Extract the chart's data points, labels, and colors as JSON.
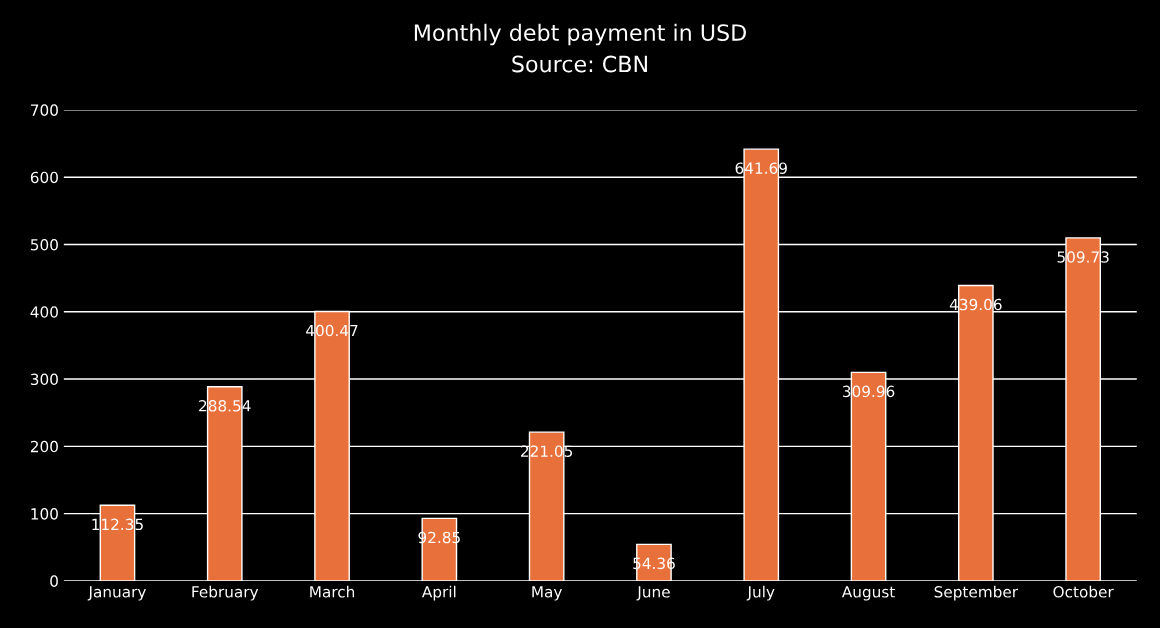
{
  "chart_data": {
    "type": "bar",
    "title": "Monthly debt payment in USD",
    "subtitle": "Source: CBN",
    "categories": [
      "January",
      "February",
      "March",
      "April",
      "May",
      "June",
      "July",
      "August",
      "September",
      "October"
    ],
    "values": [
      112.35,
      288.54,
      400.47,
      92.85,
      221.05,
      54.36,
      641.69,
      309.96,
      439.06,
      509.73
    ],
    "color": "#e8703a",
    "ylim": [
      0,
      700
    ],
    "yticks": [
      0,
      100,
      200,
      300,
      400,
      500,
      600,
      700
    ],
    "grid": "y",
    "data_labels": true,
    "legend": false
  }
}
